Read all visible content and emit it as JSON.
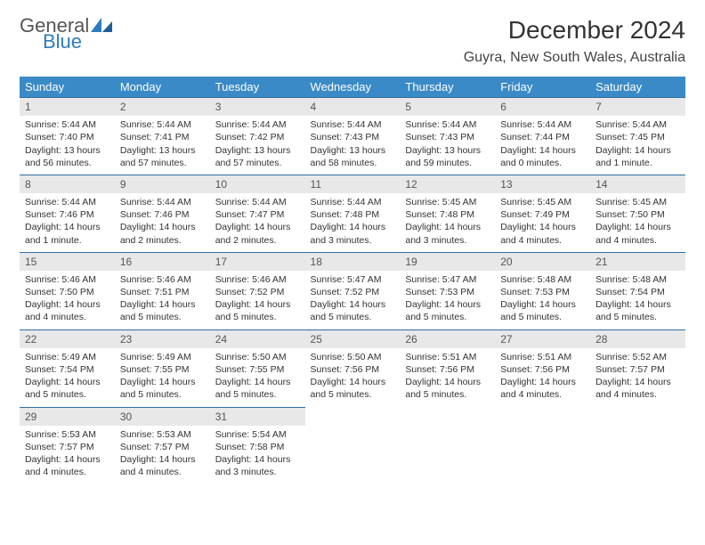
{
  "logo": {
    "top": "General",
    "bottom": "Blue"
  },
  "title": "December 2024",
  "location": "Guyra, New South Wales, Australia",
  "colors": {
    "header_bg": "#3a8ac7",
    "header_text": "#ffffff",
    "daynum_bg": "#e8e8e8",
    "rule": "#2f6fa3",
    "logo_gray": "#555555",
    "logo_blue": "#2f7bbf"
  },
  "weekdays": [
    "Sunday",
    "Monday",
    "Tuesday",
    "Wednesday",
    "Thursday",
    "Friday",
    "Saturday"
  ],
  "days": [
    {
      "n": 1,
      "sunrise": "5:44 AM",
      "sunset": "7:40 PM",
      "daylight": "13 hours and 56 minutes."
    },
    {
      "n": 2,
      "sunrise": "5:44 AM",
      "sunset": "7:41 PM",
      "daylight": "13 hours and 57 minutes."
    },
    {
      "n": 3,
      "sunrise": "5:44 AM",
      "sunset": "7:42 PM",
      "daylight": "13 hours and 57 minutes."
    },
    {
      "n": 4,
      "sunrise": "5:44 AM",
      "sunset": "7:43 PM",
      "daylight": "13 hours and 58 minutes."
    },
    {
      "n": 5,
      "sunrise": "5:44 AM",
      "sunset": "7:43 PM",
      "daylight": "13 hours and 59 minutes."
    },
    {
      "n": 6,
      "sunrise": "5:44 AM",
      "sunset": "7:44 PM",
      "daylight": "14 hours and 0 minutes."
    },
    {
      "n": 7,
      "sunrise": "5:44 AM",
      "sunset": "7:45 PM",
      "daylight": "14 hours and 1 minute."
    },
    {
      "n": 8,
      "sunrise": "5:44 AM",
      "sunset": "7:46 PM",
      "daylight": "14 hours and 1 minute."
    },
    {
      "n": 9,
      "sunrise": "5:44 AM",
      "sunset": "7:46 PM",
      "daylight": "14 hours and 2 minutes."
    },
    {
      "n": 10,
      "sunrise": "5:44 AM",
      "sunset": "7:47 PM",
      "daylight": "14 hours and 2 minutes."
    },
    {
      "n": 11,
      "sunrise": "5:44 AM",
      "sunset": "7:48 PM",
      "daylight": "14 hours and 3 minutes."
    },
    {
      "n": 12,
      "sunrise": "5:45 AM",
      "sunset": "7:48 PM",
      "daylight": "14 hours and 3 minutes."
    },
    {
      "n": 13,
      "sunrise": "5:45 AM",
      "sunset": "7:49 PM",
      "daylight": "14 hours and 4 minutes."
    },
    {
      "n": 14,
      "sunrise": "5:45 AM",
      "sunset": "7:50 PM",
      "daylight": "14 hours and 4 minutes."
    },
    {
      "n": 15,
      "sunrise": "5:46 AM",
      "sunset": "7:50 PM",
      "daylight": "14 hours and 4 minutes."
    },
    {
      "n": 16,
      "sunrise": "5:46 AM",
      "sunset": "7:51 PM",
      "daylight": "14 hours and 5 minutes."
    },
    {
      "n": 17,
      "sunrise": "5:46 AM",
      "sunset": "7:52 PM",
      "daylight": "14 hours and 5 minutes."
    },
    {
      "n": 18,
      "sunrise": "5:47 AM",
      "sunset": "7:52 PM",
      "daylight": "14 hours and 5 minutes."
    },
    {
      "n": 19,
      "sunrise": "5:47 AM",
      "sunset": "7:53 PM",
      "daylight": "14 hours and 5 minutes."
    },
    {
      "n": 20,
      "sunrise": "5:48 AM",
      "sunset": "7:53 PM",
      "daylight": "14 hours and 5 minutes."
    },
    {
      "n": 21,
      "sunrise": "5:48 AM",
      "sunset": "7:54 PM",
      "daylight": "14 hours and 5 minutes."
    },
    {
      "n": 22,
      "sunrise": "5:49 AM",
      "sunset": "7:54 PM",
      "daylight": "14 hours and 5 minutes."
    },
    {
      "n": 23,
      "sunrise": "5:49 AM",
      "sunset": "7:55 PM",
      "daylight": "14 hours and 5 minutes."
    },
    {
      "n": 24,
      "sunrise": "5:50 AM",
      "sunset": "7:55 PM",
      "daylight": "14 hours and 5 minutes."
    },
    {
      "n": 25,
      "sunrise": "5:50 AM",
      "sunset": "7:56 PM",
      "daylight": "14 hours and 5 minutes."
    },
    {
      "n": 26,
      "sunrise": "5:51 AM",
      "sunset": "7:56 PM",
      "daylight": "14 hours and 5 minutes."
    },
    {
      "n": 27,
      "sunrise": "5:51 AM",
      "sunset": "7:56 PM",
      "daylight": "14 hours and 4 minutes."
    },
    {
      "n": 28,
      "sunrise": "5:52 AM",
      "sunset": "7:57 PM",
      "daylight": "14 hours and 4 minutes."
    },
    {
      "n": 29,
      "sunrise": "5:53 AM",
      "sunset": "7:57 PM",
      "daylight": "14 hours and 4 minutes."
    },
    {
      "n": 30,
      "sunrise": "5:53 AM",
      "sunset": "7:57 PM",
      "daylight": "14 hours and 4 minutes."
    },
    {
      "n": 31,
      "sunrise": "5:54 AM",
      "sunset": "7:58 PM",
      "daylight": "14 hours and 3 minutes."
    }
  ],
  "labels": {
    "sunrise": "Sunrise:",
    "sunset": "Sunset:",
    "daylight": "Daylight:"
  },
  "first_weekday_index": 0
}
